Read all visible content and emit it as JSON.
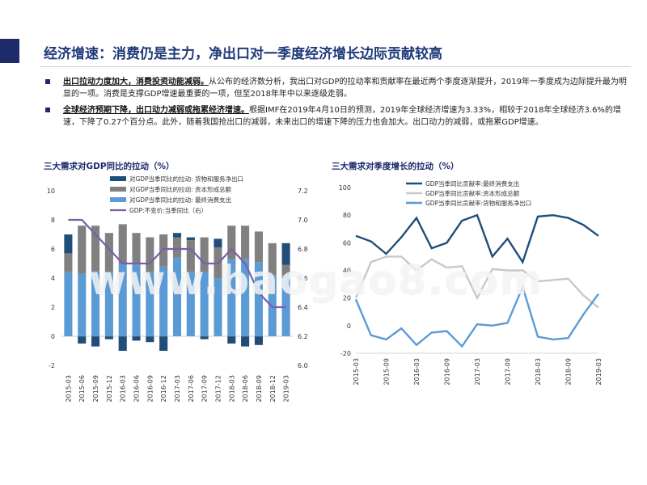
{
  "page": {
    "title": "经济增速：消费仍是主力，净出口对一季度经济增长边际贡献较高",
    "bullets": [
      {
        "lead": "出口拉动力度加大，消费投资动能减弱。",
        "text": "从公布的经济数分析，我出口对GDP的拉动率和贡献率在最近两个季度逐渐提升，2019年一季度成为边际提升最为明显的一项。消费是支撑GDP增速最重要的一项，但至2018年年中以来逐级走弱。"
      },
      {
        "lead": "全球经济预期下降，出口动力减弱或拖累经济增速。",
        "text": "根据IMF在2019年4月10日的预测，2019年全球经济增速为3.33%，相较于2018年全球经济3.6%的增速，下降了0.27个百分点。此外，随着我国抢出口的减弱，未来出口的增速下降的压力也会加大。出口动力的减弱，或拖累GDP增速。"
      }
    ],
    "watermark": "www.baogao8.com"
  },
  "colors": {
    "title": "#1f3a7a",
    "accent": "#1f2a6b",
    "dark_navy": "#1f4e79",
    "gray": "#808080",
    "light_blue": "#5b9bd5",
    "purple": "#7a5ea8",
    "light_gray": "#c8c8c8"
  },
  "chart_data": [
    {
      "type": "bar",
      "title": "三大需求对GDP同比的拉动（%）",
      "stacked": true,
      "categories": [
        "2015-03",
        "2015-06",
        "2015-09",
        "2015-12",
        "2016-03",
        "2016-06",
        "2016-09",
        "2016-12",
        "2017-03",
        "2017-06",
        "2017-09",
        "2017-12",
        "2018-03",
        "2018-06",
        "2018-09",
        "2018-12",
        "2019-03"
      ],
      "xtick_labels": [
        "2015-03",
        "2015-06",
        "2015-09",
        "2015-12",
        "2016-03",
        "2016-06",
        "2016-09",
        "2016-12",
        "2017-03",
        "2017-06",
        "2017-09",
        "2017-12",
        "2018-03",
        "2018-06",
        "2018-09",
        "2018-12",
        "2019-03"
      ],
      "series": [
        {
          "name": "对GDP当季同比的拉动: 货物和服务净出口",
          "color": "#1f4e79",
          "values": [
            1.3,
            -0.5,
            -0.7,
            -0.2,
            -1.0,
            -0.3,
            -0.4,
            -1.0,
            0.3,
            0.2,
            -0.2,
            0.6,
            -0.5,
            -0.7,
            -0.6,
            0.0,
            1.5
          ]
        },
        {
          "name": "对GDP当季同比的拉动: 资本形成总额",
          "color": "#808080",
          "values": [
            1.3,
            3.3,
            3.1,
            2.7,
            2.7,
            2.2,
            2.4,
            2.2,
            1.4,
            2.2,
            2.4,
            2.1,
            2.3,
            2.3,
            2.1,
            2.2,
            0.7
          ]
        },
        {
          "name": "对GDP当季同比的拉动: 最终消费支出",
          "color": "#5b9bd5",
          "values": [
            4.4,
            4.3,
            4.5,
            4.4,
            5.0,
            4.9,
            4.4,
            4.8,
            5.4,
            4.4,
            4.4,
            4.0,
            5.3,
            5.3,
            5.1,
            4.2,
            4.2
          ]
        }
      ],
      "line_series": {
        "name": "GDP:不变价:当季同比（右）",
        "color": "#7a5ea8",
        "values": [
          7.0,
          7.0,
          6.9,
          6.8,
          6.7,
          6.7,
          6.7,
          6.8,
          6.8,
          6.8,
          6.7,
          6.7,
          6.8,
          6.7,
          6.5,
          6.4,
          6.4
        ]
      },
      "y_left": {
        "ylim": [
          -2,
          10
        ],
        "ticks": [
          "-2",
          "0",
          "2",
          "4",
          "6",
          "8",
          "10"
        ]
      },
      "y_right": {
        "ylim": [
          6.0,
          7.2
        ],
        "ticks": [
          "6.0",
          "6.2",
          "6.4",
          "6.6",
          "6.8",
          "7.0",
          "7.2"
        ]
      },
      "legend_position": "top",
      "grid": false
    },
    {
      "type": "line",
      "title": "三大需求对季度增长的拉动（%）",
      "categories": [
        "2015-03",
        "2015-06",
        "2015-09",
        "2015-12",
        "2016-03",
        "2016-06",
        "2016-09",
        "2016-12",
        "2017-03",
        "2017-06",
        "2017-09",
        "2017-12",
        "2018-03",
        "2018-06",
        "2018-09",
        "2018-12",
        "2019-03"
      ],
      "xtick_labels": [
        "2015-03",
        "2015-09",
        "2016-03",
        "2016-09",
        "2017-03",
        "2017-09",
        "2018-03",
        "2018-09",
        "2019-03"
      ],
      "series": [
        {
          "name": "GDP当季同比贡献率:最终消费支出",
          "color": "#1f4e79",
          "values": [
            65,
            61,
            52,
            64,
            78,
            56,
            60,
            76,
            80,
            50,
            63,
            46,
            79,
            80,
            78,
            73,
            65
          ]
        },
        {
          "name": "GDP当季同比贡献率:资本形成总额",
          "color": "#c8c8c8",
          "values": [
            20,
            46,
            50,
            50,
            40,
            48,
            42,
            43,
            20,
            41,
            40,
            40,
            32,
            33,
            34,
            22,
            13
          ]
        },
        {
          "name": "GDP当季同比贡献率:货物和服务净出口",
          "color": "#5b9bd5",
          "values": [
            19,
            -7,
            -10,
            -2,
            -14,
            -5,
            -4,
            -15,
            1,
            0,
            2,
            28,
            -8,
            -10,
            -9,
            8,
            23
          ]
        }
      ],
      "ylim": [
        -20,
        100
      ],
      "yticks": [
        "-20",
        "0",
        "20",
        "40",
        "60",
        "80",
        "100"
      ],
      "legend_position": "top",
      "grid": false
    }
  ]
}
